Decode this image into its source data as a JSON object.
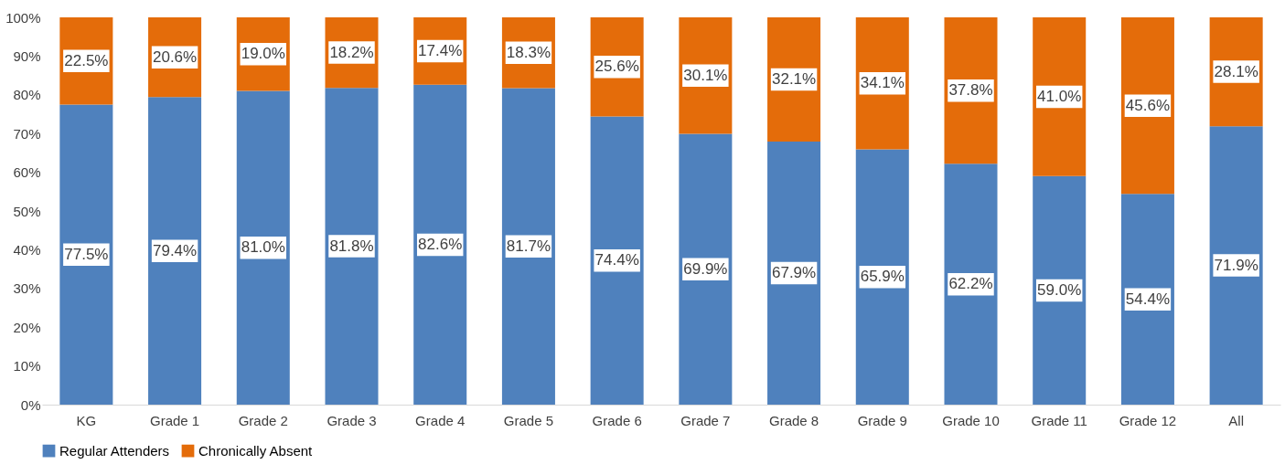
{
  "chart_data": {
    "type": "bar",
    "stacked": true,
    "categories": [
      "KG",
      "Grade 1",
      "Grade 2",
      "Grade 3",
      "Grade 4",
      "Grade 5",
      "Grade 6",
      "Grade 7",
      "Grade 8",
      "Grade 9",
      "Grade 10",
      "Grade 11",
      "Grade 12",
      "All"
    ],
    "series": [
      {
        "name": "Regular Attenders",
        "color": "#4f81bd",
        "values": [
          77.5,
          79.4,
          81.0,
          81.8,
          82.6,
          81.7,
          74.4,
          69.9,
          67.9,
          65.9,
          62.2,
          59.0,
          54.4,
          71.9
        ],
        "value_labels": [
          "77.5%",
          "79.4%",
          "81.0%",
          "81.8%",
          "82.6%",
          "81.7%",
          "74.4%",
          "69.9%",
          "67.9%",
          "65.9%",
          "62.2%",
          "59.0%",
          "54.4%",
          "71.9%"
        ]
      },
      {
        "name": "Chronically Absent",
        "color": "#e46c0a",
        "values": [
          22.5,
          20.6,
          19.0,
          18.2,
          17.4,
          18.3,
          25.6,
          30.1,
          32.1,
          34.1,
          37.8,
          41.0,
          45.6,
          28.1
        ],
        "value_labels": [
          "22.5%",
          "20.6%",
          "19.0%",
          "18.2%",
          "17.4%",
          "18.3%",
          "25.6%",
          "30.1%",
          "32.1%",
          "34.1%",
          "37.8%",
          "41.0%",
          "45.6%",
          "28.1%"
        ]
      }
    ],
    "ylim": [
      0,
      100
    ],
    "yticks": [
      {
        "value": 0,
        "label": "0%"
      },
      {
        "value": 10,
        "label": "10%"
      },
      {
        "value": 20,
        "label": "20%"
      },
      {
        "value": 30,
        "label": "30%"
      },
      {
        "value": 40,
        "label": "40%"
      },
      {
        "value": 50,
        "label": "50%"
      },
      {
        "value": 60,
        "label": "60%"
      },
      {
        "value": 70,
        "label": "70%"
      },
      {
        "value": 80,
        "label": "80%"
      },
      {
        "value": 90,
        "label": "90%"
      },
      {
        "value": 100,
        "label": "100%"
      }
    ],
    "grid": false,
    "legend": "bottom"
  }
}
